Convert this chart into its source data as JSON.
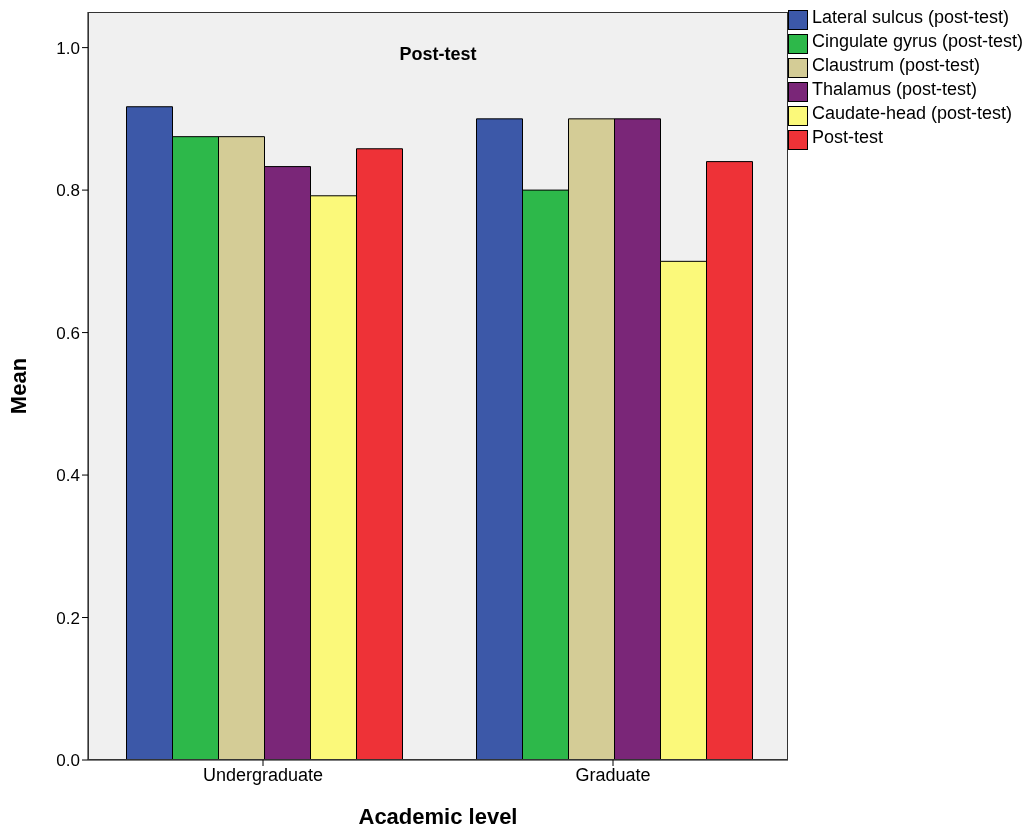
{
  "chart_data": {
    "type": "bar",
    "title": "Post-test",
    "xlabel": "Academic level",
    "ylabel": "Mean",
    "categories": [
      "Undergraduate",
      "Graduate"
    ],
    "series": [
      {
        "name": "Lateral sulcus (post-test)",
        "color": "#3c58a8",
        "values": [
          0.917,
          0.9
        ]
      },
      {
        "name": "Cingulate gyrus (post-test)",
        "color": "#2db84a",
        "values": [
          0.875,
          0.8
        ]
      },
      {
        "name": "Claustrum (post-test)",
        "color": "#d4cc96",
        "values": [
          0.875,
          0.9
        ]
      },
      {
        "name": "Thalamus (post-test)",
        "color": "#7a2678",
        "values": [
          0.833,
          0.9
        ]
      },
      {
        "name": "Caudate-head (post-test)",
        "color": "#fbf97a",
        "values": [
          0.792,
          0.7
        ]
      },
      {
        "name": "Post-test",
        "color": "#ee3237",
        "values": [
          0.858,
          0.84
        ]
      }
    ],
    "ylim": [
      0,
      1.05
    ],
    "yticks": [
      {
        "value": 0,
        "label": "0.0"
      },
      {
        "value": 0.2,
        "label": "0.2"
      },
      {
        "value": 0.4,
        "label": "0.4"
      },
      {
        "value": 0.6,
        "label": "0.6"
      },
      {
        "value": 0.8,
        "label": "0.8"
      },
      {
        "value": 1,
        "label": "1.0"
      }
    ],
    "grid": false,
    "legend": "top right"
  }
}
